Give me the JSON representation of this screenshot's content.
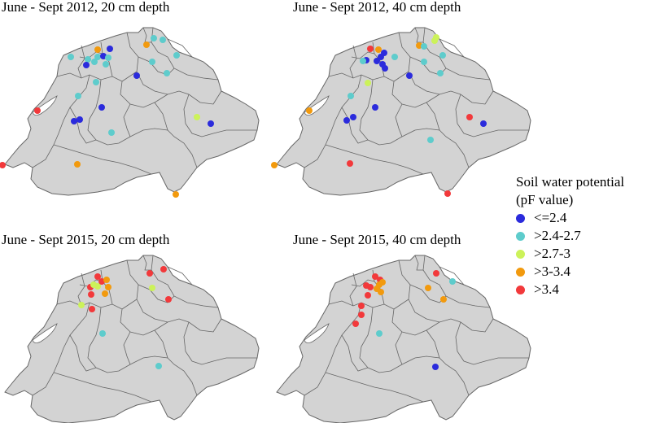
{
  "panels": [
    {
      "title": "June - Sept 2012, 20 cm depth"
    },
    {
      "title": "June - Sept 2012, 40 cm depth"
    },
    {
      "title": "June - Sept 2015, 20 cm depth"
    },
    {
      "title": "June - Sept 2015, 40 cm depth"
    }
  ],
  "legend": {
    "title_line1": "Soil water potential",
    "title_line2": "(pF value)",
    "classes": [
      {
        "label": "<=2.4",
        "color": "#2b2bdc"
      },
      {
        "label": ">2.4-2.7",
        "color": "#5ecccc"
      },
      {
        "label": ">2.7-3",
        "color": "#ccf25a"
      },
      {
        "label": ">3-3.4",
        "color": "#f29a0e"
      },
      {
        "label": ">3.4",
        "color": "#f2393b"
      }
    ]
  },
  "colors": {
    "land": "#d3d3d3",
    "border": "#666666"
  }
}
